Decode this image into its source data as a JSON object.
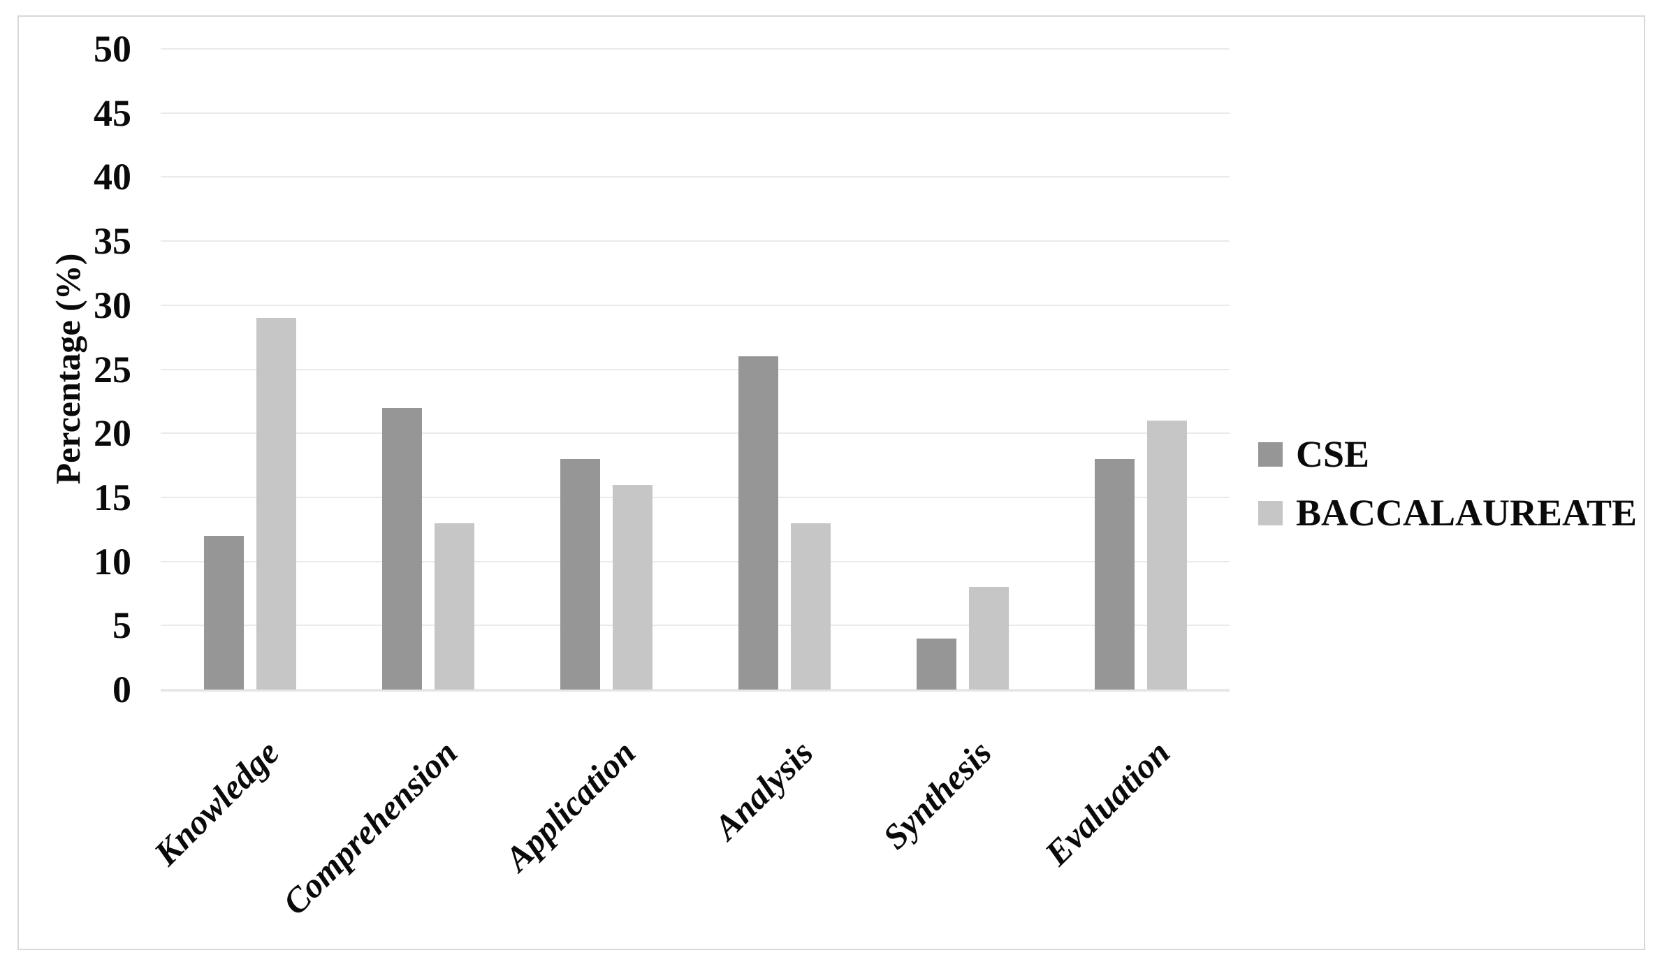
{
  "chart_data": {
    "type": "bar",
    "title": "",
    "categories": [
      "Knowledge",
      "Comprehension",
      "Application",
      "Analysis",
      "Synthesis",
      "Evaluation"
    ],
    "series": [
      {
        "name": "CSE",
        "color": "#969696",
        "values": [
          12,
          22,
          18,
          26,
          4,
          18
        ]
      },
      {
        "name": "BACCALAUREATE",
        "color": "#c6c6c6",
        "values": [
          29,
          13,
          16,
          13,
          8,
          21
        ]
      }
    ],
    "xlabel": "",
    "ylabel": "Percentage (%)",
    "ylim": [
      0,
      50
    ],
    "yticks": [
      0,
      5,
      10,
      15,
      20,
      25,
      30,
      35,
      40,
      45,
      50
    ],
    "grid": true,
    "legend_position": "right",
    "colors": {
      "gridline": "#eaeaea",
      "axis_line": "#e7e7e7",
      "figure_border": "#d8d8d8",
      "text": "#0a0a0a",
      "background": "#ffffff"
    }
  }
}
